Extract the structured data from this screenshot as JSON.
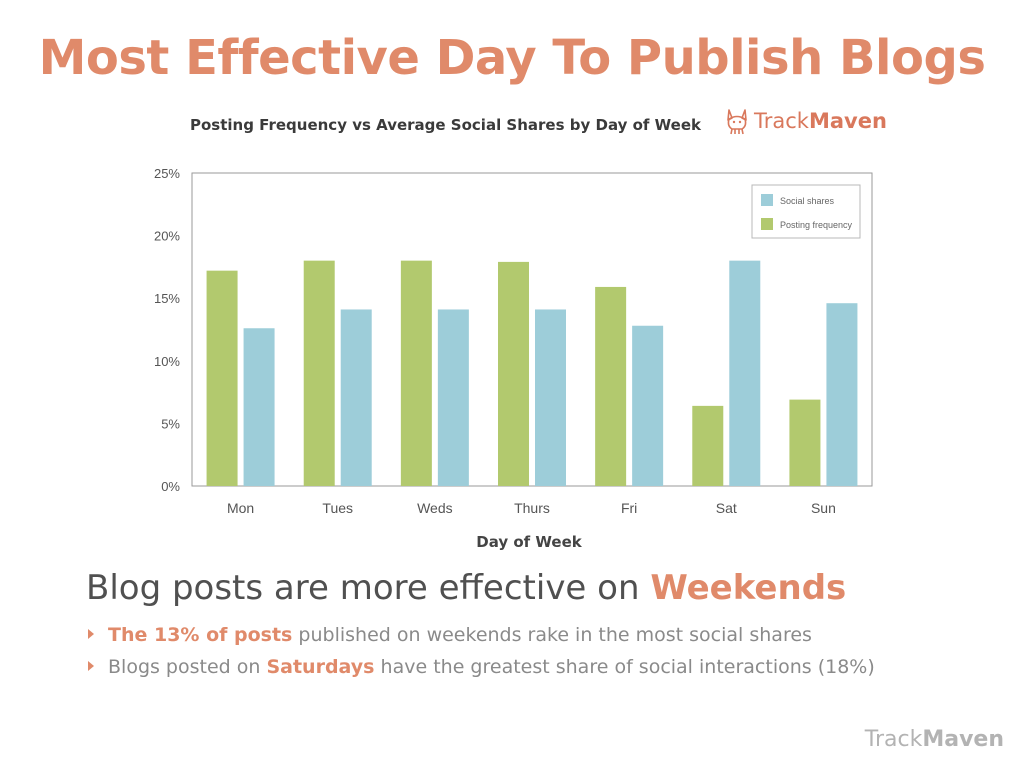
{
  "slide": {
    "title": "Most Effective Day To Publish Blogs",
    "headline_pre": "Blog posts are more effective on ",
    "headline_accent": "Weekends",
    "bullets": [
      {
        "accent": "The 13% of posts",
        "rest": " published on weekends rake in the most social shares"
      },
      {
        "pre": "Blogs posted on ",
        "accent": "Saturdays",
        "rest": " have the greatest share of social interactions (18%)"
      }
    ],
    "accent_color": "#e08a6a"
  },
  "logo": {
    "part1": "Track",
    "part2": "Maven",
    "icon": "corgi-dog-icon"
  },
  "footer_logo": {
    "part1": "Track",
    "part2": "Maven"
  },
  "chart_data": {
    "type": "bar",
    "title": "Posting Frequency vs Average Social Shares by Day of Week",
    "xlabel": "Day of Week",
    "ylabel": "",
    "categories": [
      "Mon",
      "Tues",
      "Weds",
      "Thurs",
      "Fri",
      "Sat",
      "Sun"
    ],
    "series": [
      {
        "name": "Posting frequency",
        "color": "#b2c96e",
        "values": [
          17.2,
          18.0,
          18.0,
          17.9,
          15.9,
          6.4,
          6.9
        ]
      },
      {
        "name": "Social shares",
        "color": "#9dcdd9",
        "values": [
          12.6,
          14.1,
          14.1,
          14.1,
          12.8,
          18.0,
          14.6
        ]
      }
    ],
    "ylim": [
      0,
      25
    ],
    "yticks": [
      "0%",
      "5%",
      "10%",
      "15%",
      "20%",
      "25%"
    ],
    "ytick_values": [
      0,
      5,
      10,
      15,
      20,
      25
    ],
    "grid": false,
    "legend_position": "top-right",
    "legend_order": [
      "Social shares",
      "Posting frequency"
    ]
  }
}
